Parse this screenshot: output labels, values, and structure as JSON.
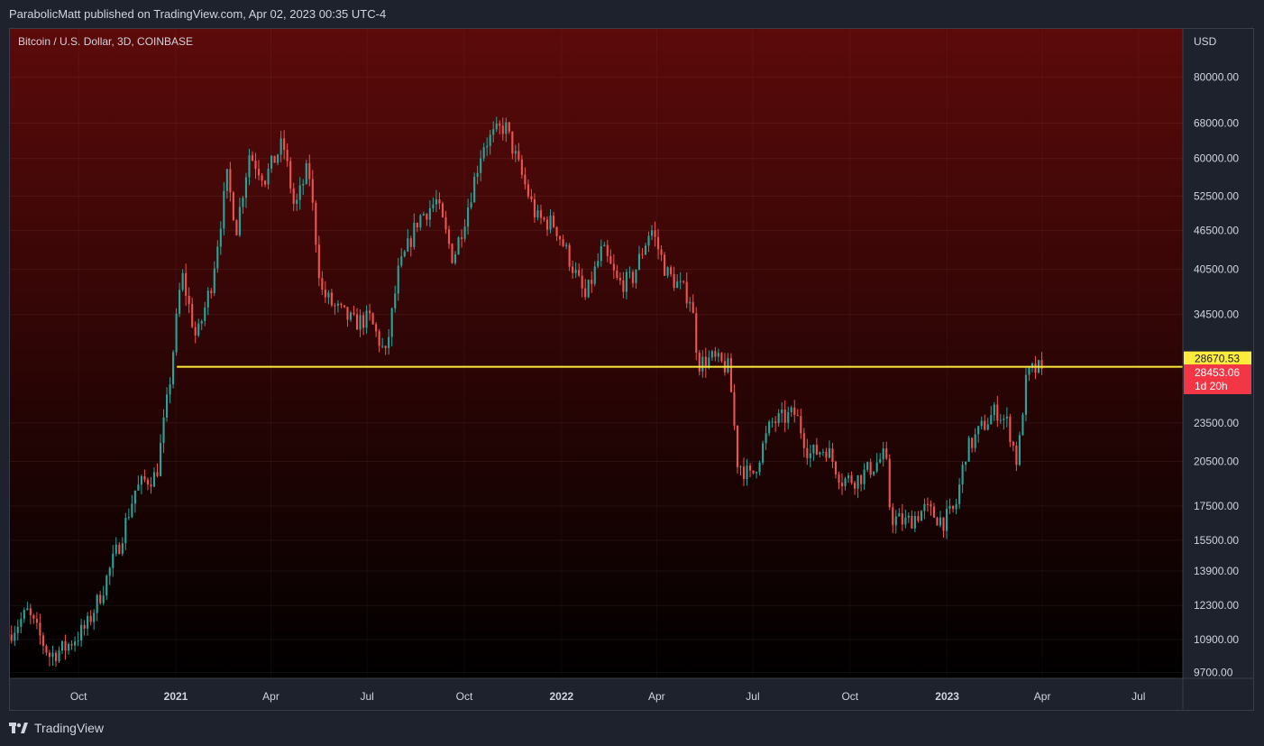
{
  "header": {
    "text": "ParabolicMatt published on TradingView.com, Apr 02, 2023 00:35 UTC-4"
  },
  "footer": {
    "brand": "TradingView"
  },
  "colors": {
    "up": "#26a69a",
    "down": "#ef5350",
    "level_line": "#ffeb3b",
    "price_label_bg": "#f23645",
    "bg_top": "#5c0a0a",
    "bg_bottom": "#000000"
  },
  "chart_data": {
    "type": "candlestick",
    "title": "Bitcoin / U.S. Dollar, 3D, COINBASE",
    "currency": "USD",
    "y_scale": "log",
    "ylim": [
      9500,
      95000
    ],
    "y_ticks": [
      "80000.00",
      "68000.00",
      "60000.00",
      "52500.00",
      "46500.00",
      "40500.00",
      "34500.00",
      "23500.00",
      "20500.00",
      "17500.00",
      "15500.00",
      "13900.00",
      "12300.00",
      "10900.00",
      "9700.00"
    ],
    "x_ticks": [
      {
        "label": "Oct",
        "date": "2020-10-01",
        "bold": false
      },
      {
        "label": "2021",
        "date": "2021-01-01",
        "bold": true
      },
      {
        "label": "Apr",
        "date": "2021-04-01",
        "bold": false
      },
      {
        "label": "Jul",
        "date": "2021-07-01",
        "bold": false
      },
      {
        "label": "Oct",
        "date": "2021-10-01",
        "bold": false
      },
      {
        "label": "2022",
        "date": "2022-01-01",
        "bold": true
      },
      {
        "label": "Apr",
        "date": "2022-04-01",
        "bold": false
      },
      {
        "label": "Jul",
        "date": "2022-07-01",
        "bold": false
      },
      {
        "label": "Oct",
        "date": "2022-10-01",
        "bold": false
      },
      {
        "label": "2023",
        "date": "2023-01-01",
        "bold": true
      },
      {
        "label": "Apr",
        "date": "2023-04-01",
        "bold": false
      },
      {
        "label": "Jul",
        "date": "2023-07-01",
        "bold": false
      }
    ],
    "xlim": [
      "2020-07-28",
      "2023-08-12"
    ],
    "price_path": [
      [
        "2020-07-28",
        11100
      ],
      [
        "2020-08-15",
        12000
      ],
      [
        "2020-09-05",
        10300
      ],
      [
        "2020-09-20",
        10600
      ],
      [
        "2020-10-10",
        11400
      ],
      [
        "2020-10-25",
        13000
      ],
      [
        "2020-11-10",
        15300
      ],
      [
        "2020-11-25",
        18500
      ],
      [
        "2020-12-05",
        19200
      ],
      [
        "2020-12-15",
        19500
      ],
      [
        "2020-12-27",
        26500
      ],
      [
        "2021-01-08",
        40000
      ],
      [
        "2021-01-22",
        31500
      ],
      [
        "2021-02-05",
        38500
      ],
      [
        "2021-02-20",
        56000
      ],
      [
        "2021-03-01",
        47000
      ],
      [
        "2021-03-13",
        61000
      ],
      [
        "2021-03-28",
        56000
      ],
      [
        "2021-04-14",
        63500
      ],
      [
        "2021-04-25",
        50000
      ],
      [
        "2021-05-08",
        58500
      ],
      [
        "2021-05-20",
        37500
      ],
      [
        "2021-06-01",
        35500
      ],
      [
        "2021-06-20",
        33500
      ],
      [
        "2021-07-05",
        34000
      ],
      [
        "2021-07-20",
        29800
      ],
      [
        "2021-08-01",
        40000
      ],
      [
        "2021-08-20",
        48500
      ],
      [
        "2021-09-06",
        51500
      ],
      [
        "2021-09-22",
        42000
      ],
      [
        "2021-10-05",
        50000
      ],
      [
        "2021-10-20",
        63000
      ],
      [
        "2021-11-10",
        67500
      ],
      [
        "2021-11-25",
        57000
      ],
      [
        "2021-12-10",
        48500
      ],
      [
        "2021-12-27",
        47500
      ],
      [
        "2022-01-10",
        42000
      ],
      [
        "2022-01-25",
        36500
      ],
      [
        "2022-02-10",
        43500
      ],
      [
        "2022-02-25",
        38500
      ],
      [
        "2022-03-10",
        39000
      ],
      [
        "2022-03-28",
        47000
      ],
      [
        "2022-04-12",
        40000
      ],
      [
        "2022-05-05",
        36500
      ],
      [
        "2022-05-12",
        29000
      ],
      [
        "2022-05-25",
        29500
      ],
      [
        "2022-06-10",
        28500
      ],
      [
        "2022-06-18",
        20500
      ],
      [
        "2022-07-01",
        19300
      ],
      [
        "2022-07-20",
        23500
      ],
      [
        "2022-08-12",
        24300
      ],
      [
        "2022-08-25",
        21000
      ],
      [
        "2022-09-10",
        21500
      ],
      [
        "2022-09-25",
        19200
      ],
      [
        "2022-10-10",
        19300
      ],
      [
        "2022-10-25",
        20200
      ],
      [
        "2022-11-05",
        21000
      ],
      [
        "2022-11-10",
        16800
      ],
      [
        "2022-11-25",
        16500
      ],
      [
        "2022-12-12",
        17300
      ],
      [
        "2022-12-30",
        16600
      ],
      [
        "2023-01-10",
        17300
      ],
      [
        "2023-01-20",
        21200
      ],
      [
        "2023-02-05",
        23200
      ],
      [
        "2023-02-18",
        24600
      ],
      [
        "2023-03-01",
        23400
      ],
      [
        "2023-03-10",
        20300
      ],
      [
        "2023-03-17",
        26800
      ],
      [
        "2023-03-22",
        28200
      ],
      [
        "2023-03-30",
        28453
      ]
    ],
    "level_line": {
      "value": 28670.53,
      "start": "2021-01-02"
    },
    "last_price": {
      "value": 28453.06,
      "label": "28453.06",
      "countdown": "1d 20h"
    },
    "level_label": "28670.53"
  }
}
